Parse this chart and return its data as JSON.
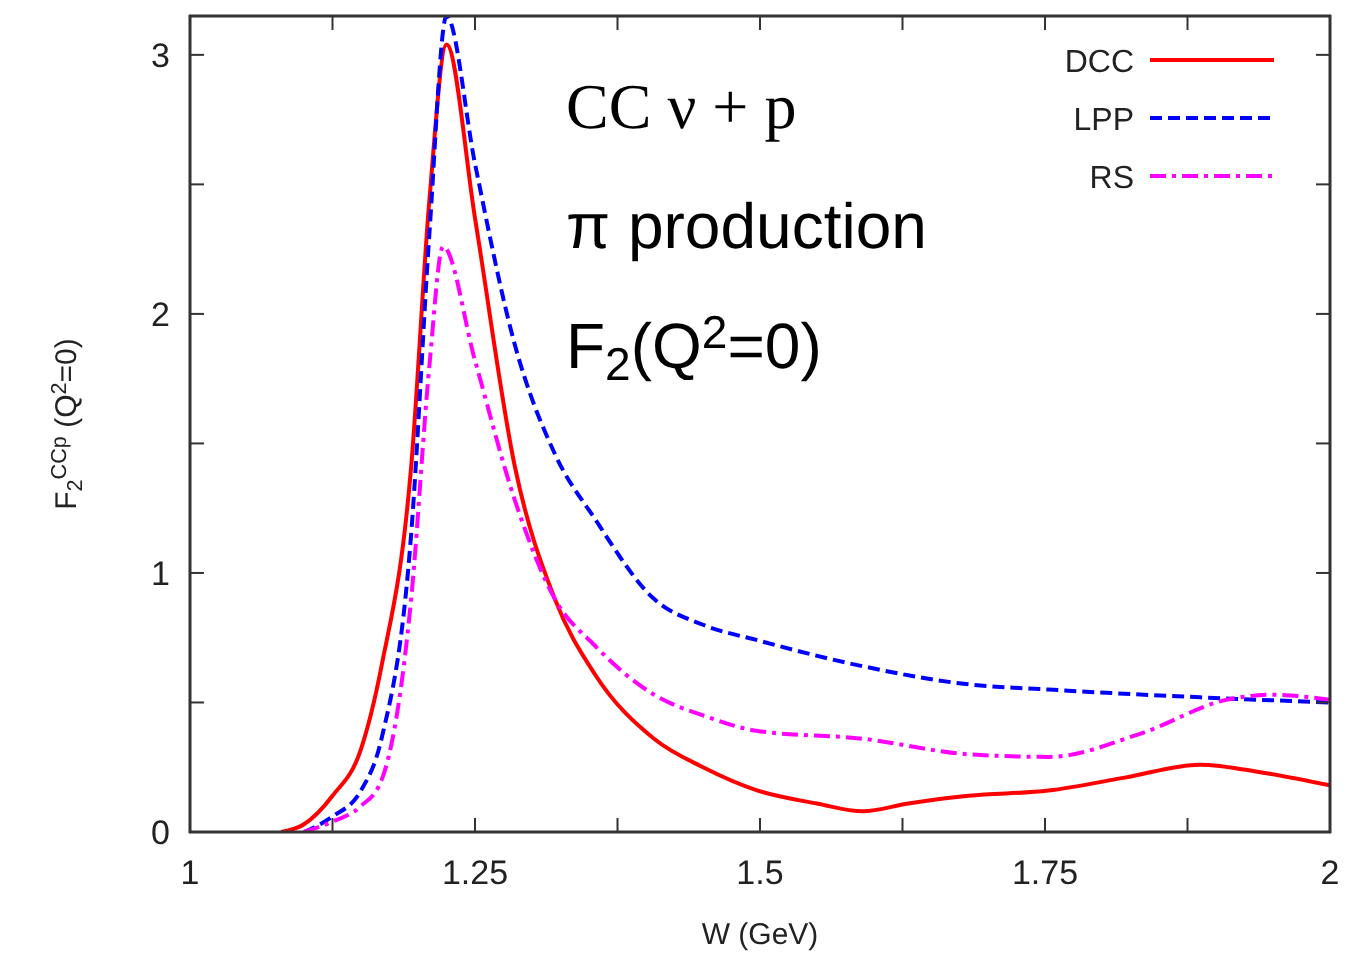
{
  "chart_data": {
    "type": "line",
    "xlabel": "W (GeV)",
    "ylabel": "F$_{2}$$^{CCp}$ (Q$^{2}$=0)",
    "annotations": [
      "CC ν + p",
      "π production",
      "F$_{2}$(Q$^{2}$=0)"
    ],
    "xlim": [
      1,
      2
    ],
    "ylim": [
      0,
      3.15
    ],
    "xticks": [
      1,
      {
        "value": 1.125,
        "label": null
      },
      1.25,
      {
        "value": 1.375,
        "label": null
      },
      1.5,
      {
        "value": 1.625,
        "label": null
      },
      1.75,
      {
        "value": 1.875,
        "label": null
      },
      2
    ],
    "yticks": [
      0,
      {
        "value": 0.5,
        "label": null
      },
      1,
      {
        "value": 1.5,
        "label": null
      },
      2,
      {
        "value": 2.5,
        "label": null
      },
      3
    ],
    "grid": false,
    "legend": "top right",
    "series": [
      {
        "name": "DCC",
        "color": "#ff0000",
        "line_style": "solid",
        "x": [
          1.08,
          1.1,
          1.125,
          1.15,
          1.168,
          1.194,
          1.21,
          1.225,
          1.25,
          1.285,
          1.32,
          1.355,
          1.407,
          1.45,
          1.498,
          1.55,
          1.59,
          1.63,
          1.683,
          1.753,
          1.82,
          1.886,
          1.94,
          2.0
        ],
        "values": [
          0,
          0.03,
          0.14,
          0.32,
          0.64,
          1.41,
          2.44,
          3.04,
          2.37,
          1.41,
          0.9,
          0.61,
          0.36,
          0.25,
          0.16,
          0.11,
          0.08,
          0.11,
          0.14,
          0.16,
          0.21,
          0.26,
          0.23,
          0.18
        ]
      },
      {
        "name": "LPP",
        "color": "#0000ff",
        "line_style": "dashed",
        "x": [
          1.1,
          1.125,
          1.15,
          1.168,
          1.194,
          1.21,
          1.225,
          1.25,
          1.285,
          1.32,
          1.355,
          1.407,
          1.45,
          1.498,
          1.59,
          1.683,
          1.753,
          1.886,
          2.0
        ],
        "values": [
          0,
          0.06,
          0.16,
          0.36,
          1.15,
          2.31,
          3.15,
          2.58,
          1.88,
          1.46,
          1.21,
          0.9,
          0.8,
          0.74,
          0.64,
          0.57,
          0.55,
          0.52,
          0.5
        ]
      },
      {
        "name": "RS",
        "color": "#ff00ff",
        "line_style": "dashdot",
        "x": [
          1.1,
          1.125,
          1.15,
          1.168,
          1.194,
          1.21,
          1.222,
          1.25,
          1.285,
          1.32,
          1.355,
          1.407,
          1.45,
          1.498,
          1.59,
          1.683,
          1.753,
          1.834,
          1.909,
          1.949,
          2.0
        ],
        "values": [
          0,
          0.04,
          0.1,
          0.2,
          0.9,
          1.8,
          2.26,
          1.82,
          1.28,
          0.9,
          0.72,
          0.53,
          0.45,
          0.39,
          0.36,
          0.3,
          0.29,
          0.38,
          0.51,
          0.53,
          0.51
        ]
      }
    ]
  }
}
